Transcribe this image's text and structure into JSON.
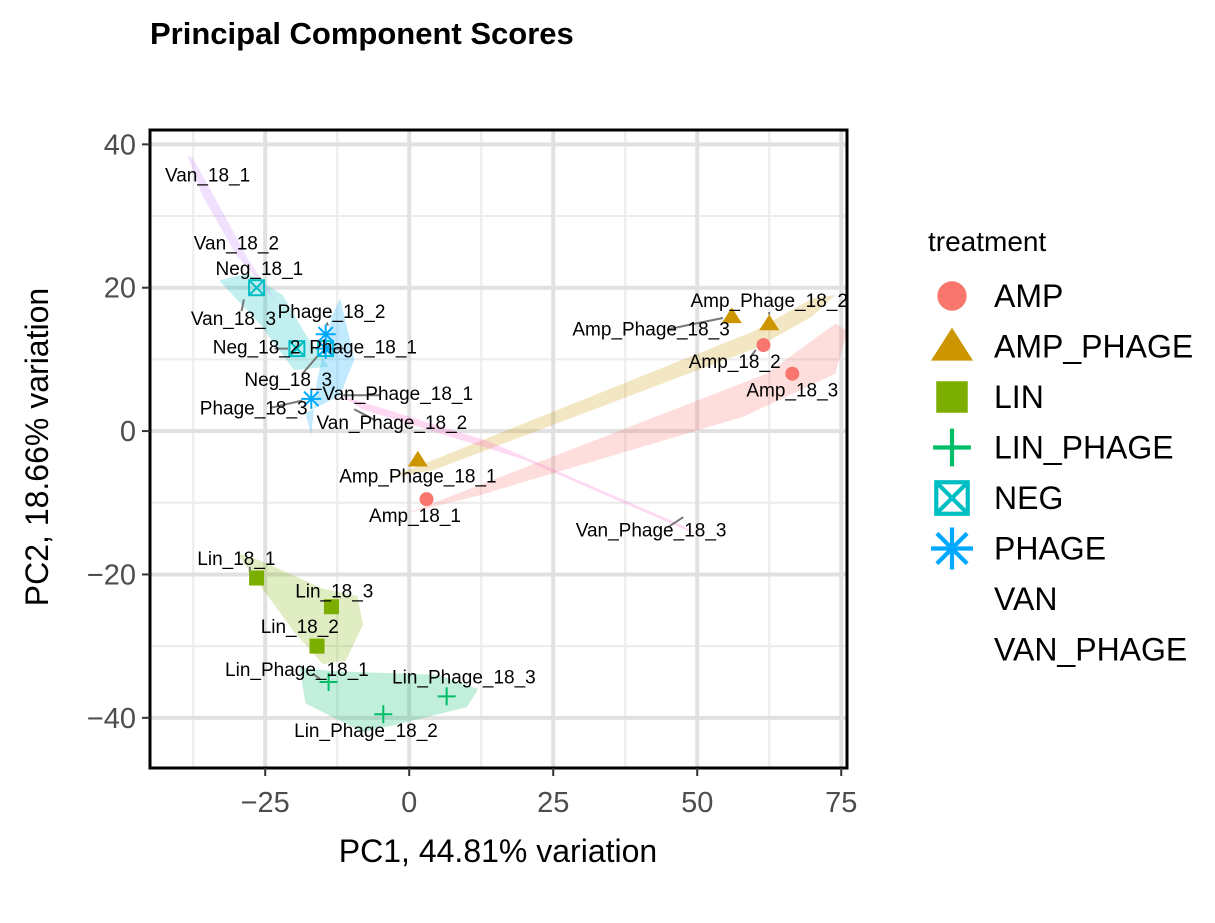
{
  "chart_data": {
    "type": "scatter",
    "title": "Principal Component Scores",
    "xlabel": "PC1, 44.81% variation",
    "ylabel": "PC2, 18.66% variation",
    "xlim": [
      -45,
      76
    ],
    "ylim": [
      -47,
      42
    ],
    "xticks": [
      -25,
      0,
      25,
      50,
      75
    ],
    "yticks": [
      -40,
      -20,
      0,
      20,
      40
    ],
    "xtick_labels": [
      "−25",
      "0",
      "25",
      "50",
      "75"
    ],
    "ytick_labels": [
      "−40",
      "−20",
      "0",
      "20",
      "40"
    ],
    "grid": true,
    "legend": {
      "title": "treatment",
      "position": "right"
    },
    "series": [
      {
        "name": "AMP",
        "color": "#F8766D",
        "shape": "circle",
        "hull": [
          [
            -0.5,
            -11.5
          ],
          [
            62,
            8
          ],
          [
            74,
            15
          ],
          [
            76,
            14
          ],
          [
            74,
            8
          ],
          [
            58,
            2
          ],
          [
            12,
            -9
          ]
        ],
        "points": [
          {
            "label": "Amp_18_1",
            "x": 3,
            "y": -9.5,
            "label_x": 1,
            "label_y": -12
          },
          {
            "label": "Amp_18_2",
            "x": 61.5,
            "y": 12,
            "label_x": 56.5,
            "label_y": 9.5
          },
          {
            "label": "Amp_18_3",
            "x": 66.5,
            "y": 8,
            "label_x": 66.5,
            "label_y": 5.5
          }
        ]
      },
      {
        "name": "AMP_PHAGE",
        "color": "#CD9600",
        "shape": "triangle",
        "hull": [
          [
            -3.5,
            -6.5
          ],
          [
            60,
            14
          ],
          [
            70,
            18.5
          ],
          [
            74,
            19
          ],
          [
            70,
            16
          ],
          [
            60,
            11.5
          ],
          [
            4,
            -5.5
          ]
        ],
        "points": [
          {
            "label": "Amp_Phage_18_1",
            "x": 1.5,
            "y": -4,
            "label_x": 1.5,
            "label_y": -6.5
          },
          {
            "label": "Amp_Phage_18_2",
            "x": 62.5,
            "y": 15,
            "label_x": 62.5,
            "label_y": 18
          },
          {
            "label": "Amp_Phage_18_3",
            "x": 56,
            "y": 16,
            "label_x": 42,
            "label_y": 14
          }
        ]
      },
      {
        "name": "LIN",
        "color": "#7CAE00",
        "shape": "square",
        "hull": [
          [
            -30,
            -17
          ],
          [
            -26,
            -18
          ],
          [
            -15,
            -22
          ],
          [
            -9,
            -23
          ],
          [
            -8,
            -27
          ],
          [
            -11,
            -32
          ],
          [
            -15,
            -32.5
          ],
          [
            -20,
            -28
          ]
        ],
        "points": [
          {
            "label": "Lin_18_1",
            "x": -26.5,
            "y": -20.5,
            "label_x": -30,
            "label_y": -18
          },
          {
            "label": "Lin_18_2",
            "x": -16,
            "y": -30,
            "label_x": -19,
            "label_y": -27.5
          },
          {
            "label": "Lin_18_3",
            "x": -13.5,
            "y": -24.5,
            "label_x": -13,
            "label_y": -22.5
          }
        ]
      },
      {
        "name": "LIN_PHAGE",
        "color": "#00BE67",
        "shape": "plus",
        "hull": [
          [
            -19,
            -33
          ],
          [
            -13,
            -33.5
          ],
          [
            5,
            -34
          ],
          [
            12,
            -36
          ],
          [
            10,
            -38.5
          ],
          [
            0,
            -40.5
          ],
          [
            -8,
            -42
          ],
          [
            -18,
            -38
          ]
        ],
        "points": [
          {
            "label": "Lin_Phage_18_1",
            "x": -14,
            "y": -35,
            "label_x": -19.5,
            "label_y": -33.5
          },
          {
            "label": "Lin_Phage_18_2",
            "x": -4.5,
            "y": -39.5,
            "label_x": -7.5,
            "label_y": -42
          },
          {
            "label": "Lin_Phage_18_3",
            "x": 6.5,
            "y": -37,
            "label_x": 9.5,
            "label_y": -34.5
          }
        ]
      },
      {
        "name": "NEG",
        "color": "#00BFC4",
        "shape": "square-cross",
        "hull": [
          [
            -33,
            21
          ],
          [
            -28,
            22
          ],
          [
            -22,
            19
          ],
          [
            -18,
            13.5
          ],
          [
            -14,
            9
          ],
          [
            -20,
            8.5
          ],
          [
            -26,
            15
          ]
        ],
        "points": [
          {
            "label": "Neg_18_1",
            "x": -26.5,
            "y": 20,
            "label_x": -26,
            "label_y": 22.5
          },
          {
            "label": "Neg_18_2",
            "x": -19.5,
            "y": 11.5,
            "label_x": -26.5,
            "label_y": 11.5
          },
          {
            "label": "Neg_18_3",
            "x": -14.5,
            "y": 11.5,
            "label_x": -21,
            "label_y": 7
          }
        ]
      },
      {
        "name": "PHAGE",
        "color": "#00A9FF",
        "shape": "asterisk",
        "hull": [
          [
            -12,
            18.5
          ],
          [
            -9.5,
            10
          ],
          [
            -12,
            5
          ],
          [
            -18,
            2.5
          ],
          [
            -17,
            -0.5
          ],
          [
            -16,
            7
          ],
          [
            -13.5,
            16
          ]
        ],
        "points": [
          {
            "label": "Phage_18_1",
            "x": -14.5,
            "y": 11.5,
            "label_x": -8,
            "label_y": 11.5
          },
          {
            "label": "Phage_18_2",
            "x": -14.5,
            "y": 13.5,
            "label_x": -13.5,
            "label_y": 16.5
          },
          {
            "label": "Phage_18_3",
            "x": -17,
            "y": 4.5,
            "label_x": -27,
            "label_y": 3
          }
        ]
      },
      {
        "name": "VAN",
        "color": "#C77CFF",
        "shape": "none",
        "hull": [
          [
            -38.5,
            38.5
          ],
          [
            -37.5,
            38
          ],
          [
            -32,
            30
          ],
          [
            -28,
            24
          ],
          [
            -23,
            18
          ],
          [
            -30,
            24.5
          ],
          [
            -36,
            33
          ]
        ],
        "points": [
          {
            "label": "Van_18_1",
            "x": -35,
            "y": 35,
            "label_x": -35,
            "label_y": 35.5
          },
          {
            "label": "Van_18_2",
            "x": -32,
            "y": 28,
            "label_x": -30,
            "label_y": 26
          },
          {
            "label": "Van_18_3",
            "x": -28,
            "y": 19.5,
            "label_x": -30.5,
            "label_y": 15.5
          }
        ]
      },
      {
        "name": "VAN_PHAGE",
        "color": "#FF61CC",
        "shape": "none",
        "hull": [
          [
            -12,
            5
          ],
          [
            -8,
            3
          ],
          [
            20,
            -4
          ],
          [
            50,
            -14.5
          ],
          [
            47,
            -13
          ],
          [
            14,
            -1.5
          ]
        ],
        "points": [
          {
            "label": "Van_Phage_18_1",
            "x": -13,
            "y": 5,
            "label_x": -2,
            "label_y": 5
          },
          {
            "label": "Van_Phage_18_2",
            "x": -11,
            "y": 3.5,
            "label_x": -3,
            "label_y": 1
          },
          {
            "label": "Van_Phage_18_3",
            "x": 49,
            "y": -11.5,
            "label_x": 42,
            "label_y": -14
          }
        ]
      }
    ]
  }
}
